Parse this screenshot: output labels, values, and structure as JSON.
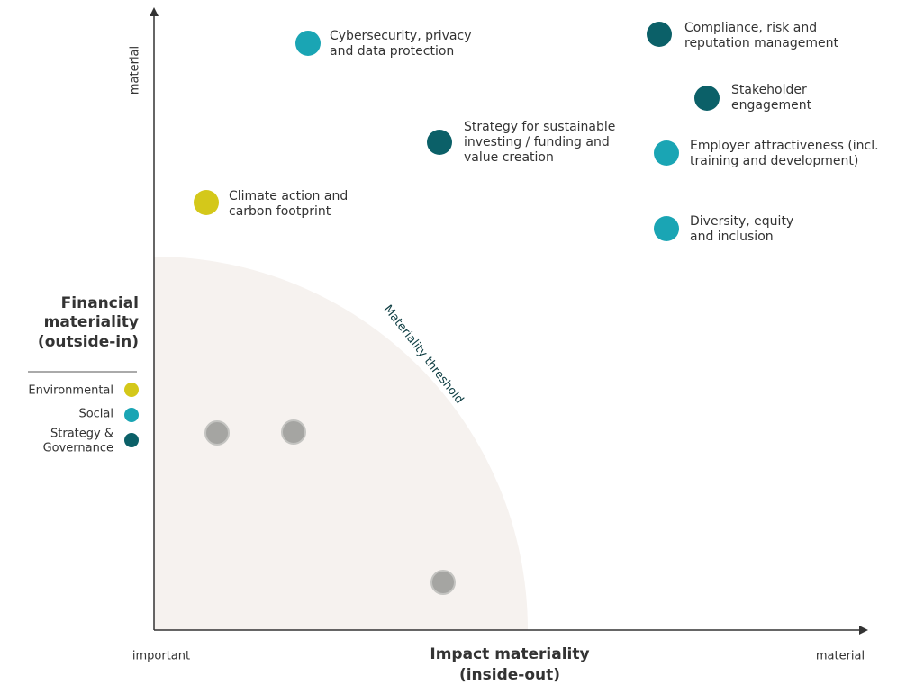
{
  "axes": {
    "y_end": "material",
    "x_start": "important",
    "x_end": "material",
    "x_title": [
      "Impact materiality",
      "(inside-out)"
    ],
    "y_title": [
      "Financial",
      "materiality",
      "(outside-in)"
    ]
  },
  "threshold_label": "Materiality threshold",
  "legend": [
    {
      "label": [
        "Environmental"
      ],
      "color": "#d4c81a"
    },
    {
      "label": [
        "Social"
      ],
      "color": "#1aa5b4"
    },
    {
      "label": [
        "Strategy &",
        "Governance"
      ],
      "color": "#0b6068"
    }
  ],
  "topics": [
    {
      "label": [
        "Cybersecurity, privacy",
        "and data protection"
      ],
      "group": 1
    },
    {
      "label": [
        "Compliance, risk and",
        "reputation management"
      ],
      "group": 2
    },
    {
      "label": [
        "Stakeholder",
        "engagement"
      ],
      "group": 2
    },
    {
      "label": [
        "Strategy for sustainable",
        "investing / funding and",
        "value creation"
      ],
      "group": 2
    },
    {
      "label": [
        "Employer attractiveness (incl.",
        "training and development)"
      ],
      "group": 1
    },
    {
      "label": [
        "Climate action and",
        "carbon footprint"
      ],
      "group": 0
    },
    {
      "label": [
        "Diversity, equity",
        "and inclusion"
      ],
      "group": 1
    }
  ]
}
